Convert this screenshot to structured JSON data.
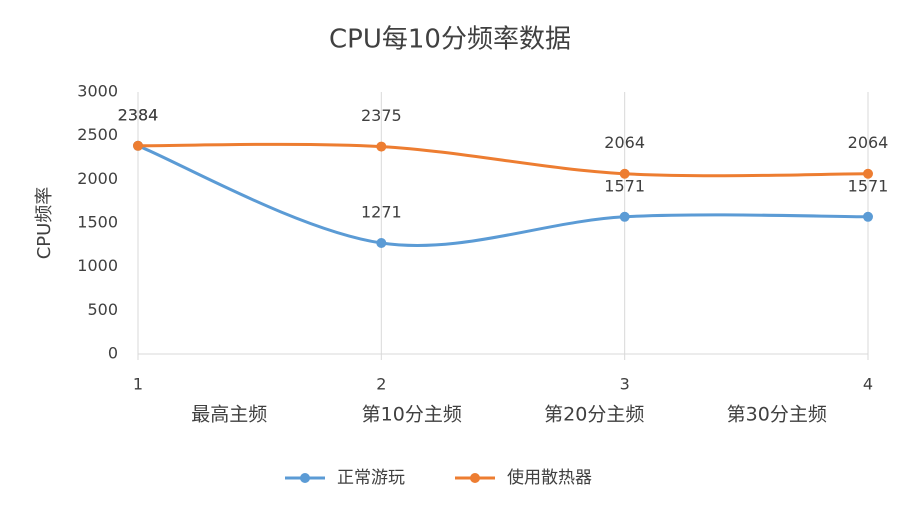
{
  "chart_data": {
    "type": "line",
    "title": "CPU每10分频率数据",
    "y_label": "CPU频率",
    "x": [
      1,
      2,
      3,
      4
    ],
    "categories": [
      "最高主频",
      "第10分主频",
      "第20分主频",
      "第30分主频"
    ],
    "xlim": [
      1,
      4
    ],
    "xticks": [
      1,
      2,
      3,
      4
    ],
    "ylim": [
      0,
      3000
    ],
    "yticks": [
      0,
      500,
      1000,
      1500,
      2000,
      2500,
      3000
    ],
    "grid": "x",
    "smooth": true,
    "legend": "bottom",
    "series": [
      {
        "name": "正常游玩",
        "color": "#5b9bd5",
        "values": [
          2384,
          1271,
          1571,
          1571
        ]
      },
      {
        "name": "使用散热器",
        "color": "#ed7d31",
        "values": [
          2384,
          2375,
          2064,
          2064
        ]
      }
    ]
  }
}
